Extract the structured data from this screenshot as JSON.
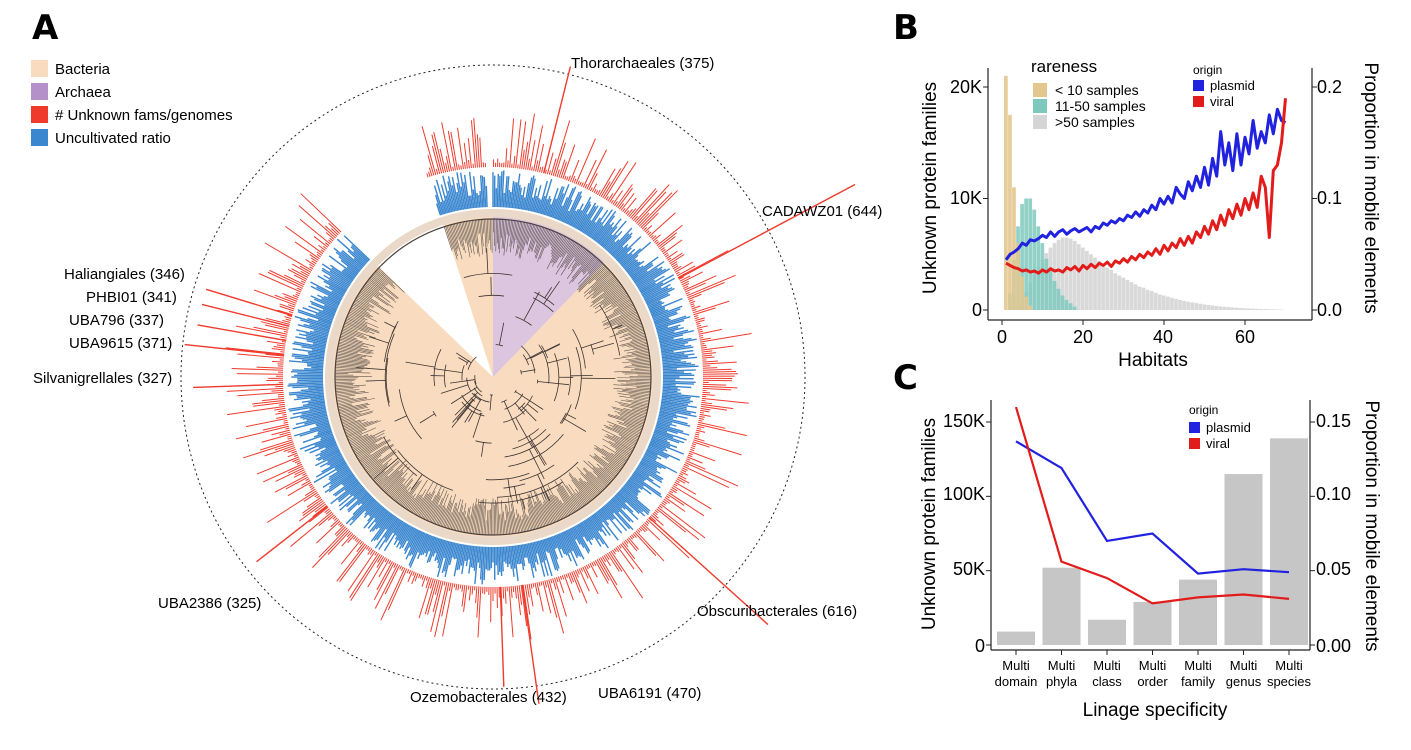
{
  "panels": {
    "a": "A",
    "b": "B",
    "c": "C"
  },
  "colors": {
    "bacteria": "#f9dcc0",
    "archaea": "#b491c8",
    "unknown_bar": "#ef3b2c",
    "uncultivated_bar": "#3a86cf",
    "plasmid": "#2121e0",
    "viral": "#e21b1b",
    "rare_lt10": "#e3c78f",
    "rare_11_50": "#7ec9bd",
    "rare_gt50": "#d5d5d5",
    "gray_bar": "#c6c6c6"
  },
  "tree": {
    "legend": [
      {
        "key": "bacteria",
        "label": "Bacteria"
      },
      {
        "key": "archaea",
        "label": "Archaea"
      },
      {
        "key": "unknown_bar",
        "label": "# Unknown fams/genomes"
      },
      {
        "key": "uncultivated_bar",
        "label": "Uncultivated ratio"
      }
    ],
    "clades": [
      {
        "label": "Thorarchaeales (375)"
      },
      {
        "label": "CADAWZ01 (644)"
      },
      {
        "label": "Haliangiales (346)"
      },
      {
        "label": "PHBI01 (341)"
      },
      {
        "label": "UBA796 (337)"
      },
      {
        "label": "UBA9615 (371)"
      },
      {
        "label": "Silvanigrellales (327)"
      },
      {
        "label": "UBA2386 (325)"
      },
      {
        "label": "Obscuribacterales (616)"
      },
      {
        "label": "Ozemobacterales (432)"
      },
      {
        "label": "UBA6191 (470)"
      }
    ]
  },
  "chart_data": [
    {
      "panel": "B",
      "type": "area",
      "xlabel": "Habitats",
      "ylabel": "Unknown protein families",
      "y2label": "Proportion in mobile elements",
      "xlim": [
        0,
        70
      ],
      "ylim": [
        0,
        22000
      ],
      "y2lim": [
        0,
        0.22
      ],
      "xticks": [
        "0",
        "20",
        "40",
        "60"
      ],
      "yticks": [
        "0",
        "10K",
        "20K"
      ],
      "y2ticks": [
        "0.0",
        "0.1",
        "0.2"
      ],
      "rareness_legend_title": "rareness",
      "origin_legend_title": "origin",
      "bar_series": [
        {
          "name": "< 10 samples",
          "x": [
            1,
            2,
            3,
            4,
            5,
            6,
            7
          ],
          "values": [
            21000,
            17500,
            11000,
            6000,
            3000,
            1200,
            400
          ]
        },
        {
          "name": "11-50 samples",
          "x": [
            2,
            3,
            4,
            5,
            6,
            7,
            8,
            9,
            10,
            11,
            12,
            13,
            14,
            15,
            16,
            17,
            18
          ],
          "values": [
            1500,
            4500,
            7500,
            9500,
            10000,
            10000,
            9000,
            7500,
            6000,
            4600,
            3500,
            2600,
            1900,
            1300,
            900,
            600,
            300
          ]
        },
        {
          "name": ">50 samples",
          "x": [
            4,
            5,
            6,
            7,
            8,
            9,
            10,
            11,
            12,
            13,
            14,
            15,
            16,
            17,
            18,
            19,
            20,
            21,
            22,
            23,
            24,
            25,
            26,
            27,
            28,
            29,
            30,
            31,
            32,
            33,
            34,
            35,
            36,
            37,
            38,
            39,
            40,
            41,
            42,
            43,
            44,
            45,
            46,
            47,
            48,
            49,
            50,
            51,
            52,
            53,
            54,
            55,
            56,
            57,
            58,
            59,
            60,
            61,
            62,
            63,
            64,
            65,
            66,
            67,
            68,
            69
          ],
          "values": [
            300,
            800,
            1600,
            2400,
            3200,
            3900,
            4500,
            5100,
            5600,
            6000,
            6300,
            6500,
            6500,
            6400,
            6200,
            5900,
            5600,
            5300,
            5000,
            4700,
            4400,
            4100,
            3800,
            3600,
            3300,
            3100,
            2900,
            2700,
            2500,
            2300,
            2100,
            2000,
            1800,
            1700,
            1550,
            1400,
            1300,
            1200,
            1100,
            1000,
            900,
            820,
            750,
            680,
            620,
            560,
            500,
            450,
            400,
            360,
            320,
            290,
            260,
            230,
            200,
            180,
            160,
            140,
            120,
            100,
            90,
            80,
            70,
            60,
            50,
            40
          ]
        }
      ],
      "line_series": [
        {
          "name": "plasmid",
          "x": [
            1,
            2,
            3,
            4,
            5,
            6,
            7,
            8,
            9,
            10,
            11,
            12,
            13,
            14,
            15,
            16,
            17,
            18,
            19,
            20,
            21,
            22,
            23,
            24,
            25,
            26,
            27,
            28,
            29,
            30,
            31,
            32,
            33,
            34,
            35,
            36,
            37,
            38,
            39,
            40,
            41,
            42,
            43,
            44,
            45,
            46,
            47,
            48,
            49,
            50,
            51,
            52,
            53,
            54,
            55,
            56,
            57,
            58,
            59,
            60,
            61,
            62,
            63,
            64,
            65,
            66,
            67,
            68,
            69,
            70
          ],
          "values": [
            0.045,
            0.05,
            0.052,
            0.055,
            0.06,
            0.058,
            0.063,
            0.062,
            0.064,
            0.067,
            0.065,
            0.07,
            0.066,
            0.07,
            0.072,
            0.068,
            0.071,
            0.073,
            0.07,
            0.072,
            0.074,
            0.07,
            0.075,
            0.073,
            0.078,
            0.076,
            0.08,
            0.078,
            0.082,
            0.08,
            0.085,
            0.083,
            0.088,
            0.084,
            0.09,
            0.087,
            0.094,
            0.09,
            0.1,
            0.095,
            0.102,
            0.096,
            0.11,
            0.104,
            0.1,
            0.115,
            0.107,
            0.12,
            0.11,
            0.128,
            0.112,
            0.136,
            0.12,
            0.16,
            0.13,
            0.15,
            0.125,
            0.158,
            0.13,
            0.155,
            0.14,
            0.17,
            0.145,
            0.16,
            0.15,
            0.175,
            0.158,
            0.18,
            0.17,
            0.168
          ]
        },
        {
          "name": "viral",
          "x": [
            1,
            2,
            3,
            4,
            5,
            6,
            7,
            8,
            9,
            10,
            11,
            12,
            13,
            14,
            15,
            16,
            17,
            18,
            19,
            20,
            21,
            22,
            23,
            24,
            25,
            26,
            27,
            28,
            29,
            30,
            31,
            32,
            33,
            34,
            35,
            36,
            37,
            38,
            39,
            40,
            41,
            42,
            43,
            44,
            45,
            46,
            47,
            48,
            49,
            50,
            51,
            52,
            53,
            54,
            55,
            56,
            57,
            58,
            59,
            60,
            61,
            62,
            63,
            64,
            65,
            66,
            67,
            68,
            69,
            70
          ],
          "values": [
            0.042,
            0.04,
            0.038,
            0.037,
            0.035,
            0.036,
            0.034,
            0.035,
            0.033,
            0.036,
            0.034,
            0.037,
            0.035,
            0.036,
            0.034,
            0.038,
            0.036,
            0.039,
            0.035,
            0.04,
            0.037,
            0.041,
            0.038,
            0.042,
            0.04,
            0.043,
            0.039,
            0.044,
            0.042,
            0.046,
            0.043,
            0.048,
            0.045,
            0.05,
            0.047,
            0.052,
            0.049,
            0.055,
            0.05,
            0.058,
            0.053,
            0.06,
            0.056,
            0.064,
            0.058,
            0.066,
            0.06,
            0.07,
            0.065,
            0.075,
            0.068,
            0.08,
            0.072,
            0.085,
            0.076,
            0.09,
            0.082,
            0.095,
            0.085,
            0.1,
            0.09,
            0.105,
            0.092,
            0.12,
            0.11,
            0.065,
            0.125,
            0.13,
            0.15,
            0.19
          ]
        }
      ]
    },
    {
      "panel": "C",
      "type": "bar",
      "xlabel": "Linage specificity",
      "ylabel": "Unknown protein families",
      "y2label": "Proportion in mobile elements",
      "ylim": [
        0,
        160000
      ],
      "y2lim": [
        0,
        0.16
      ],
      "yticks": [
        "0",
        "50K",
        "100K",
        "150K"
      ],
      "y2ticks": [
        "0.00",
        "0.05",
        "0.10",
        "0.15"
      ],
      "origin_legend_title": "origin",
      "categories": [
        [
          "Multi",
          "domain"
        ],
        [
          "Multi",
          "phyla"
        ],
        [
          "Multi",
          "class"
        ],
        [
          "Multi",
          "order"
        ],
        [
          "Multi",
          "family"
        ],
        [
          "Multi",
          "genus"
        ],
        [
          "Multi",
          "species"
        ]
      ],
      "values": [
        9000,
        52000,
        17000,
        29000,
        44000,
        115000,
        139000
      ],
      "series": [
        {
          "name": "plasmid",
          "values": [
            0.137,
            0.119,
            0.07,
            0.075,
            0.048,
            0.051,
            0.049
          ]
        },
        {
          "name": "viral",
          "values": [
            0.16,
            0.056,
            0.045,
            0.028,
            0.032,
            0.034,
            0.031
          ]
        }
      ]
    }
  ]
}
